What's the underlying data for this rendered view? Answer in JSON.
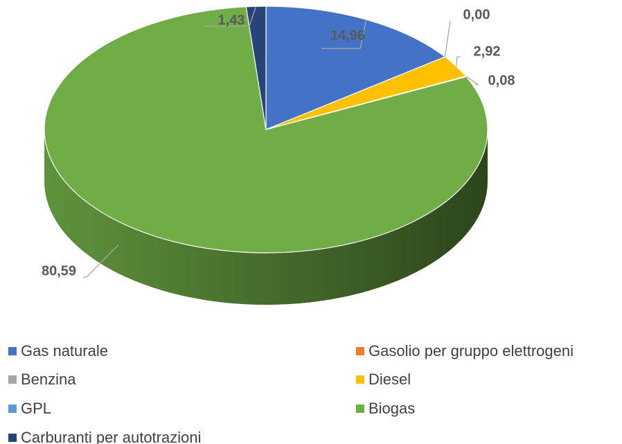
{
  "chart_data": {
    "type": "pie3d",
    "categories": [
      "Gas naturale",
      "Gasolio per gruppo elettrogeni",
      "Benzina",
      "Diesel",
      "GPL",
      "Biogas",
      "Carburanti per autotrazioni"
    ],
    "values": [
      14.96,
      0,
      null,
      2.92,
      0.08,
      80.59,
      1.43
    ],
    "value_labels": [
      "14,96",
      "0,00",
      null,
      "2,92",
      "0,08",
      "80,59",
      "1,43"
    ],
    "colors": [
      "#4472c4",
      "#ed7d31",
      "#a5a5a5",
      "#ffc000",
      "#5b9bd5",
      "#70ad47",
      "#264478"
    ],
    "legend": "bottom"
  }
}
